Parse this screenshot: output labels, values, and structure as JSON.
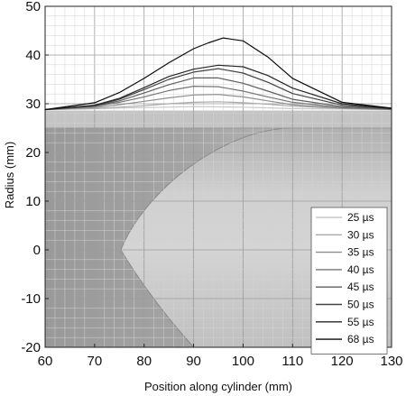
{
  "chart_data": {
    "type": "line",
    "xlabel": "Position along cylinder (mm)",
    "ylabel": "Radius (mm)",
    "xlim": [
      60,
      130
    ],
    "ylim": [
      -20,
      50
    ],
    "xticks": [
      60,
      70,
      80,
      90,
      100,
      110,
      120,
      130
    ],
    "yticks": [
      -20,
      -10,
      0,
      10,
      20,
      30,
      40,
      50
    ],
    "grid": true,
    "legend_position": "bottom-right",
    "series": [
      {
        "name": "25 µs",
        "color": "#c8c8c8",
        "x": [
          60,
          70,
          80,
          90,
          100,
          110,
          120,
          130
        ],
        "y": [
          28.8,
          29.0,
          29.2,
          29.4,
          29.3,
          29.0,
          28.9,
          28.8
        ]
      },
      {
        "name": "30 µs",
        "color": "#aaaaaa",
        "x": [
          60,
          70,
          75,
          80,
          85,
          90,
          95,
          100,
          105,
          110,
          120,
          130
        ],
        "y": [
          28.8,
          29.0,
          29.3,
          29.6,
          30.0,
          30.3,
          30.4,
          30.2,
          29.9,
          29.5,
          29.0,
          28.8
        ]
      },
      {
        "name": "35 µs",
        "color": "#8f8f8f",
        "x": [
          60,
          70,
          75,
          80,
          85,
          90,
          95,
          100,
          105,
          110,
          120,
          130
        ],
        "y": [
          28.8,
          29.2,
          29.8,
          30.5,
          31.2,
          31.8,
          31.9,
          31.4,
          30.6,
          29.8,
          29.1,
          28.8
        ]
      },
      {
        "name": "40 µs",
        "color": "#767676",
        "x": [
          60,
          70,
          75,
          80,
          85,
          90,
          95,
          100,
          105,
          110,
          120,
          130
        ],
        "y": [
          28.8,
          29.4,
          30.3,
          31.4,
          32.7,
          33.6,
          33.5,
          32.6,
          31.4,
          30.3,
          29.2,
          28.9
        ]
      },
      {
        "name": "45 µs",
        "color": "#5e5e5e",
        "x": [
          60,
          70,
          75,
          80,
          85,
          90,
          95,
          100,
          105,
          110,
          120,
          130
        ],
        "y": [
          28.8,
          29.5,
          30.6,
          32.2,
          33.9,
          35.3,
          35.3,
          34.2,
          32.6,
          30.9,
          29.4,
          28.9
        ]
      },
      {
        "name": "50 µs",
        "color": "#434343",
        "x": [
          60,
          70,
          75,
          80,
          85,
          90,
          95,
          100,
          105,
          110,
          120,
          130
        ],
        "y": [
          28.8,
          29.6,
          30.9,
          32.9,
          35.0,
          36.5,
          37.2,
          36.3,
          34.4,
          32.1,
          29.7,
          29.0
        ]
      },
      {
        "name": "55 µs",
        "color": "#262626",
        "x": [
          60,
          70,
          75,
          80,
          85,
          90,
          95,
          100,
          105,
          110,
          120,
          130
        ],
        "y": [
          28.8,
          29.7,
          31.1,
          33.3,
          35.6,
          37.1,
          37.9,
          37.6,
          35.8,
          33.2,
          30.0,
          29.0
        ]
      },
      {
        "name": "68 µs",
        "color": "#0a0a0a",
        "x": [
          60,
          70,
          75,
          80,
          85,
          90,
          93,
          96,
          100,
          105,
          110,
          120,
          130
        ],
        "y": [
          28.8,
          30.2,
          32.3,
          35.2,
          38.4,
          41.3,
          42.5,
          43.5,
          42.9,
          39.6,
          35.2,
          30.3,
          29.1
        ]
      }
    ]
  }
}
